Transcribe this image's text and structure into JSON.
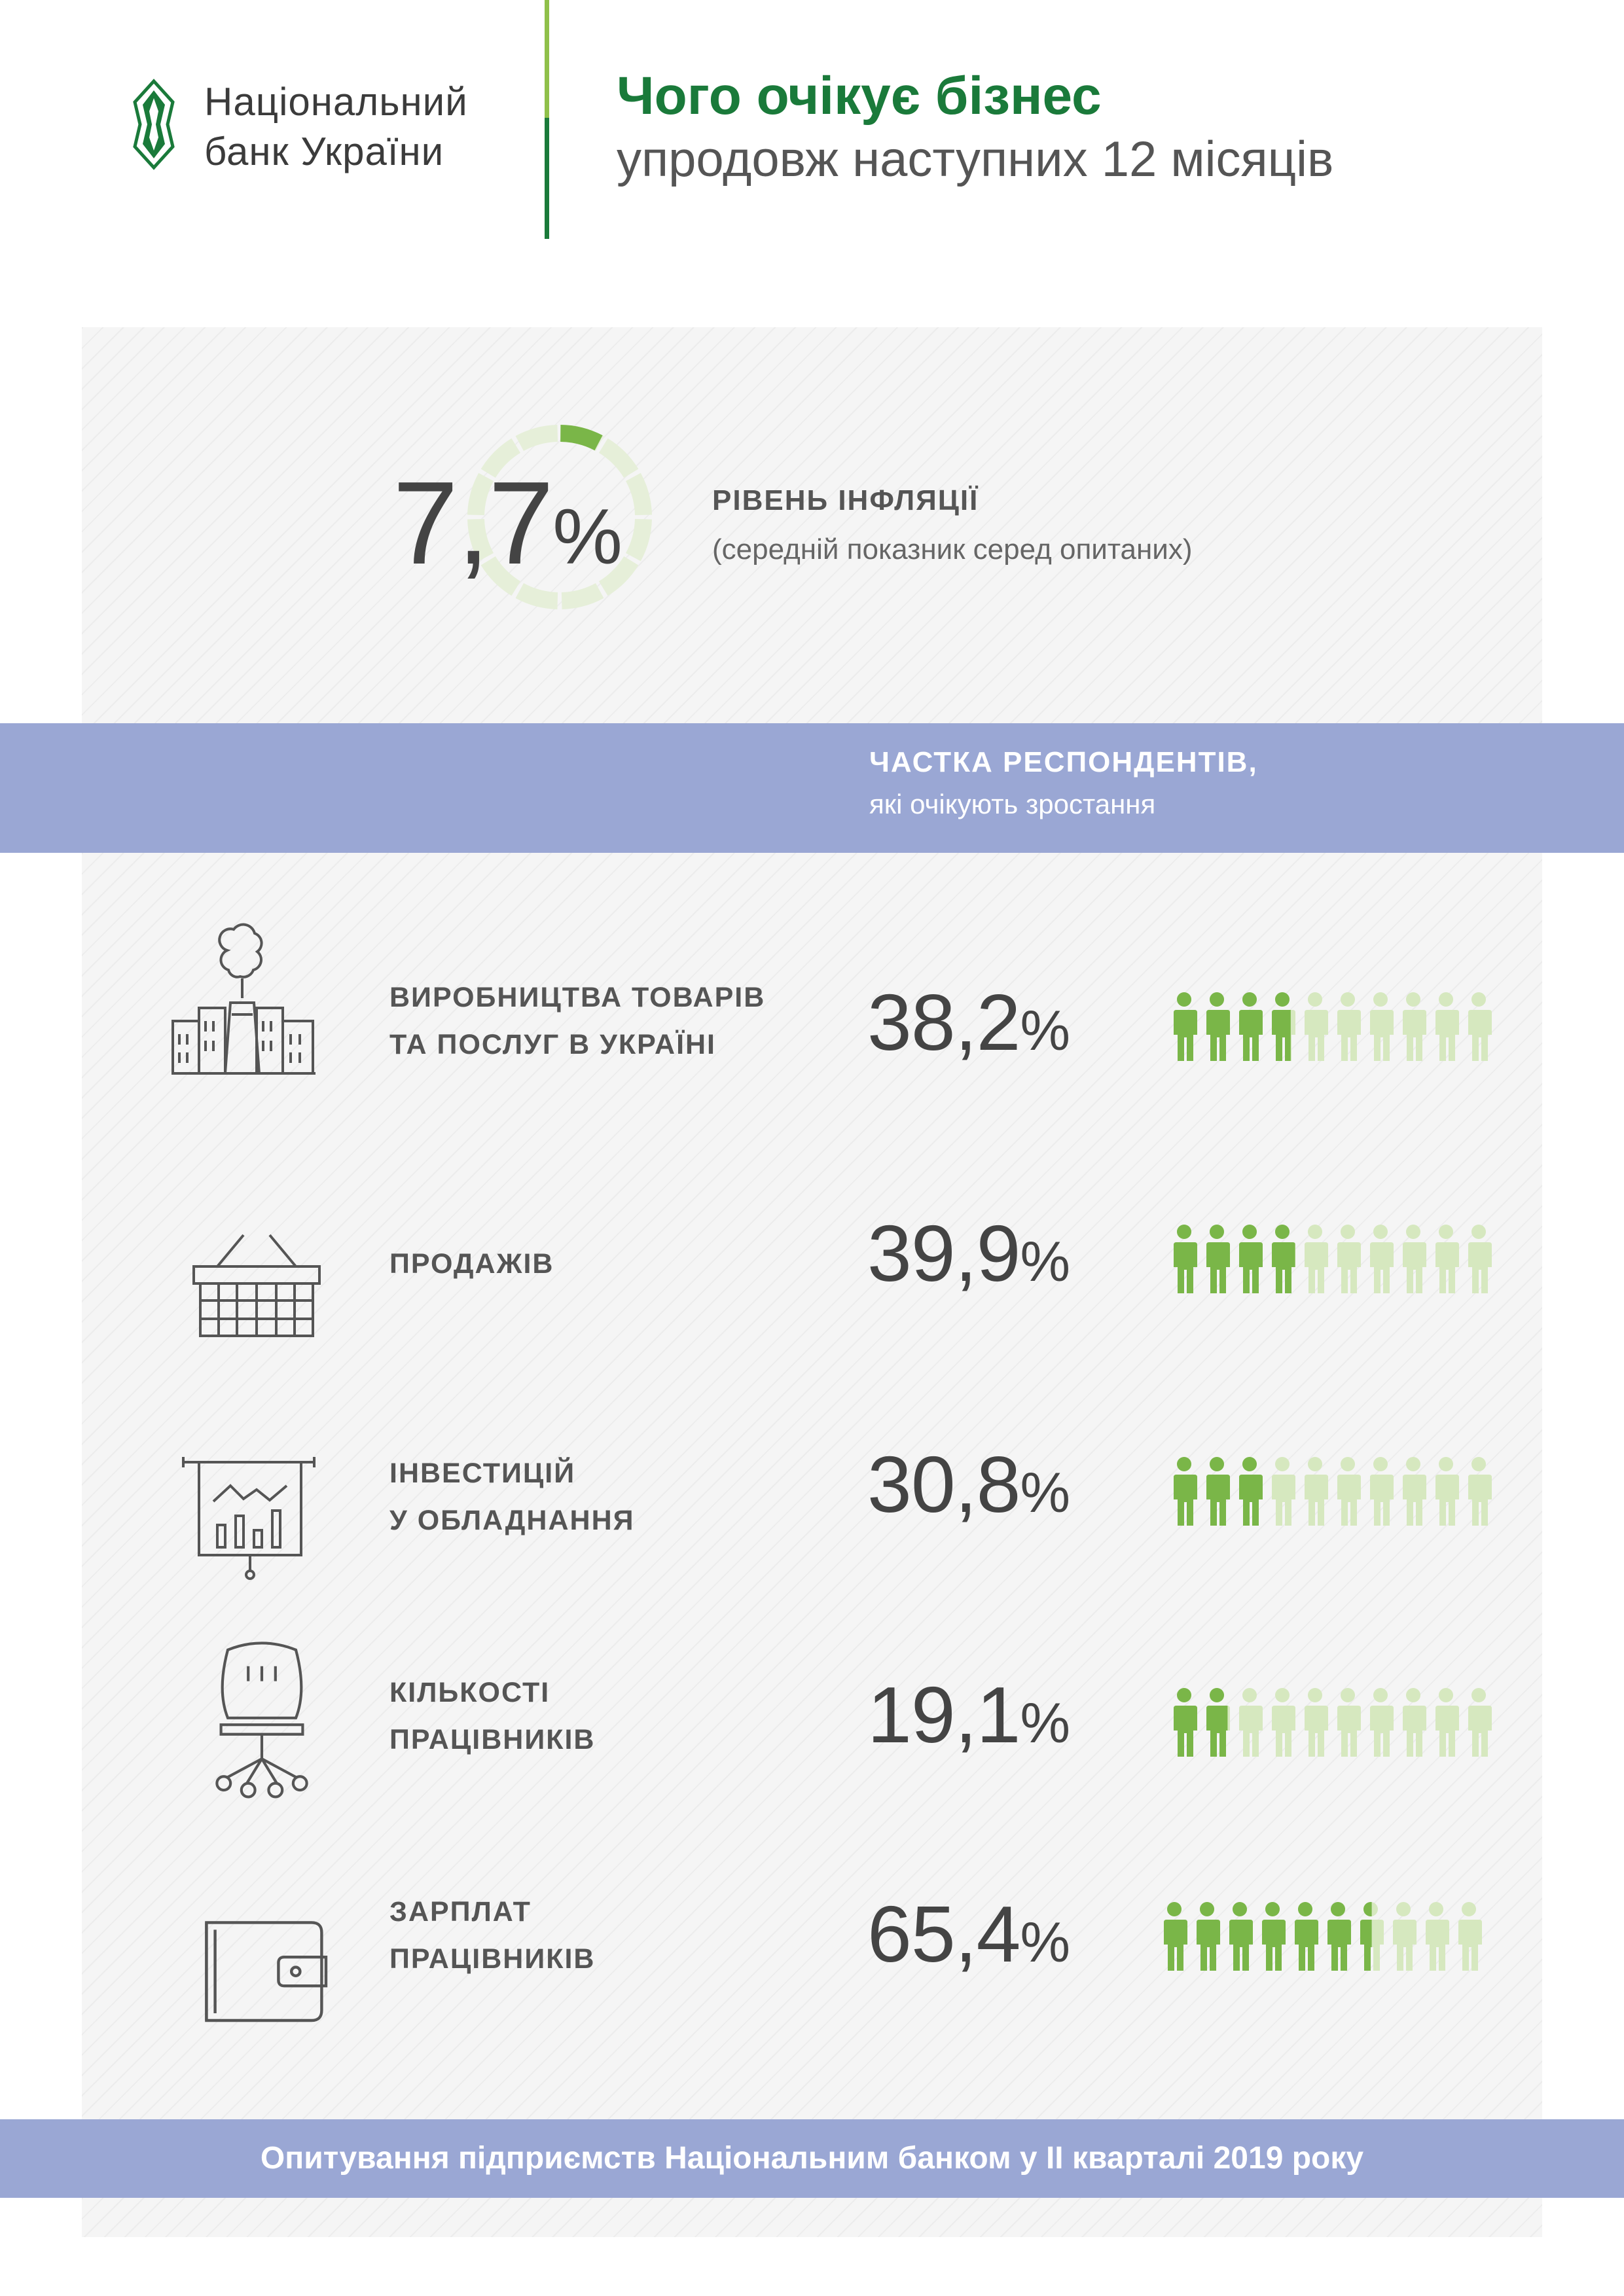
{
  "header": {
    "logo_line1": "Національний",
    "logo_line2": "банк України",
    "title": "Чого очікує бізнес",
    "subtitle": "упродовж наступних 12 місяців"
  },
  "inflation": {
    "value": "7,7",
    "unit": "%",
    "fraction": 0.077,
    "label": "РІВЕНЬ ІНФЛЯЦІЇ",
    "note": "(середній показник серед опитаних)"
  },
  "band": {
    "title": "ЧАСТКА РЕСПОНДЕНТІВ,",
    "subtitle": "які очікують зростання"
  },
  "rows": [
    {
      "line1": "ВИРОБНИЦТВА ТОВАРІВ",
      "line2": "ТА ПОСЛУГ В УКРАЇНІ",
      "value": "38,2",
      "unit": "%",
      "share": 0.382,
      "icon": "factory-icon"
    },
    {
      "line1": "ПРОДАЖІВ",
      "line2": "",
      "value": "39,9",
      "unit": "%",
      "share": 0.399,
      "icon": "basket-icon"
    },
    {
      "line1": "ІНВЕСТИЦІЙ",
      "line2": "У ОБЛАДНАННЯ",
      "value": "30,8",
      "unit": "%",
      "share": 0.308,
      "icon": "presentation-board-icon"
    },
    {
      "line1": "КІЛЬКОСТІ",
      "line2": "ПРАЦІВНИКІВ",
      "value": "19,1",
      "unit": "%",
      "share": 0.191,
      "icon": "office-chair-icon"
    },
    {
      "line1": "ЗАРПЛАТ",
      "line2": "ПРАЦІВНИКІВ",
      "value": "65,4",
      "unit": "%",
      "share": 0.654,
      "icon": "wallet-icon"
    }
  ],
  "colors": {
    "brand_green": "#1a7a3a",
    "accent_green": "#7ab648",
    "light_green": "#d6e8bf",
    "band_blue": "#9aa7d4"
  },
  "footer": {
    "text": "Опитування підприємств Національним банком у ІІ кварталі 2019 року"
  }
}
